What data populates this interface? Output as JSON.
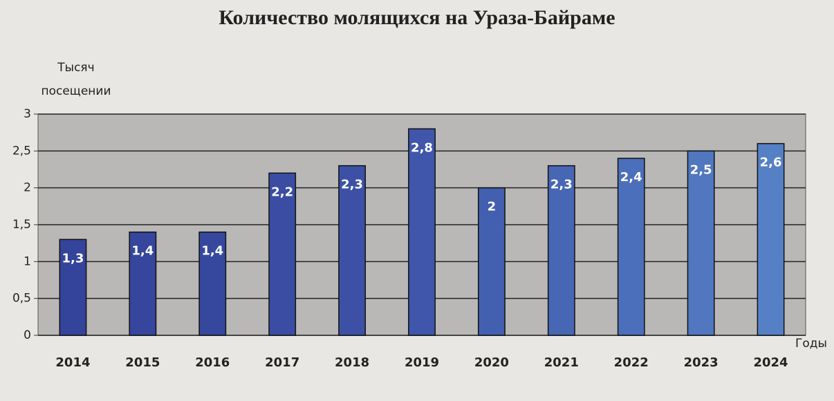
{
  "chart_data": {
    "type": "bar",
    "title": "Количество молящихся на Ураза-Байраме",
    "ylabel": [
      "Тысяч",
      "посещении"
    ],
    "xlabel": "Годы",
    "categories": [
      "2014",
      "2015",
      "2016",
      "2017",
      "2018",
      "2019",
      "2020",
      "2021",
      "2022",
      "2023",
      "2024"
    ],
    "values": [
      1.3,
      1.4,
      1.4,
      2.2,
      2.3,
      2.8,
      2,
      2.3,
      2.4,
      2.5,
      2.6
    ],
    "value_labels": [
      "1,3",
      "1,4",
      "1,4",
      "2,2",
      "2,3",
      "2,8",
      "2",
      "2,3",
      "2,4",
      "2,5",
      "2,6"
    ],
    "colors": [
      "#34449a",
      "#35469c",
      "#36489e",
      "#3a4da2",
      "#3c51a6",
      "#3f56aa",
      "#4360b0",
      "#4767b5",
      "#4b6fba",
      "#5077c0",
      "#5580c6"
    ],
    "ylim": [
      0,
      3
    ],
    "yticks": [
      0,
      {
        "value": 0.5,
        "label": "0,5"
      },
      1,
      {
        "value": 1.5,
        "label": "1,5"
      },
      2,
      {
        "value": 2.5,
        "label": "2,5"
      },
      3
    ],
    "grid": true
  }
}
